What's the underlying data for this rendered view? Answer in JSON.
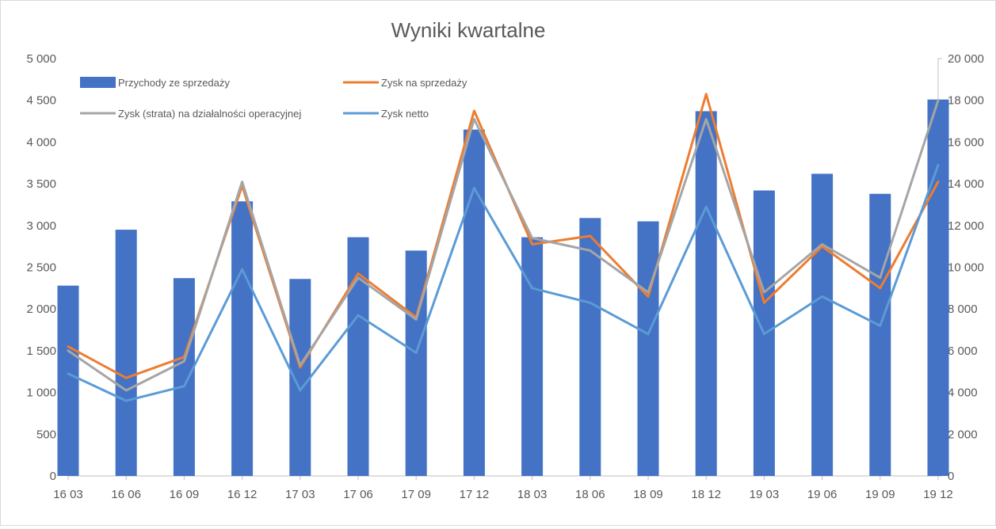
{
  "chart_data": {
    "type": "bar",
    "title": "Wyniki kwartalne",
    "categories": [
      "16 03",
      "16 06",
      "16 09",
      "16 12",
      "17 03",
      "17 06",
      "17 09",
      "17 12",
      "18 03",
      "18 06",
      "18 09",
      "18 12",
      "19 03",
      "19 06",
      "19 09",
      "19 12"
    ],
    "ylim_left": [
      0,
      5000
    ],
    "ylim_right": [
      0,
      20000
    ],
    "yticks_left": [
      "0",
      "500",
      "1 000",
      "1 500",
      "2 000",
      "2 500",
      "3 000",
      "3 500",
      "4 000",
      "4 500",
      "5 000"
    ],
    "yticks_right": [
      "0",
      "2 000",
      "4 000",
      "6 000",
      "8 000",
      "10 000",
      "12 000",
      "14 000",
      "16 000",
      "18 000",
      "20 000"
    ],
    "legend_position": "top-left inside plot",
    "grid": false,
    "series": [
      {
        "name": "Przychody ze sprzedaży",
        "type": "bar",
        "axis": "left",
        "color": "#4472C4",
        "values": [
          2280,
          2950,
          2370,
          3290,
          2360,
          2860,
          2700,
          4150,
          2860,
          3090,
          3050,
          4370,
          3420,
          3620,
          3380,
          4510
        ]
      },
      {
        "name": "Zysk na sprzedaży",
        "type": "line",
        "axis": "right",
        "color": "#ED7D31",
        "values": [
          6200,
          4700,
          5700,
          13900,
          5200,
          9700,
          7600,
          17500,
          11100,
          11500,
          8600,
          18300,
          8300,
          11000,
          9000,
          14100
        ]
      },
      {
        "name": "Zysk (strata) na działalności operacyjnej",
        "type": "line",
        "axis": "right",
        "color": "#A5A5A5",
        "values": [
          6000,
          4100,
          5500,
          14100,
          5300,
          9500,
          7500,
          17100,
          11400,
          10800,
          8800,
          17100,
          8800,
          11100,
          9500,
          18000
        ]
      },
      {
        "name": "Zysk netto",
        "type": "line",
        "axis": "right",
        "color": "#5B9BD5",
        "values": [
          4900,
          3600,
          4300,
          9900,
          4100,
          7700,
          5900,
          13800,
          9000,
          8300,
          6800,
          12900,
          6800,
          8600,
          7200,
          14900
        ]
      }
    ]
  }
}
